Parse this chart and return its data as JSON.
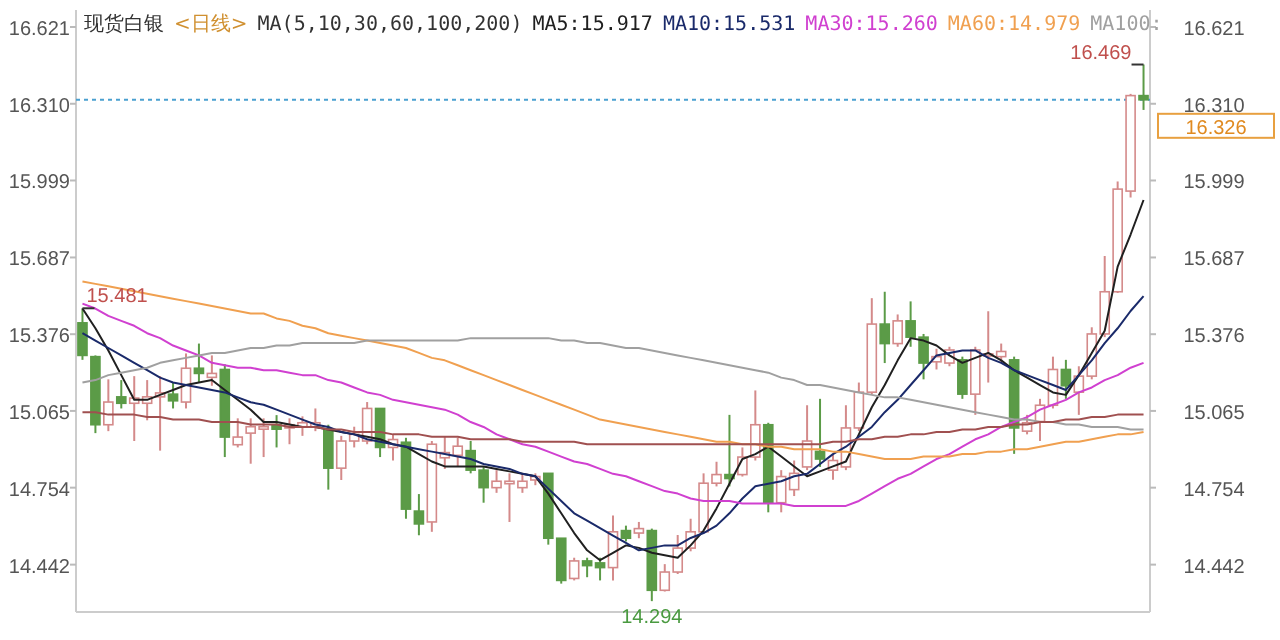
{
  "chart_data": {
    "type": "candlestick",
    "title": "现货白银",
    "subtitle": "<日线>",
    "annotations": [
      "MA(5,10,30,60,100,200)",
      {
        "text": "15.481",
        "y": 15.481
      },
      {
        "text": "14.294",
        "y": 14.294
      },
      "16.469"
    ],
    "categories": [
      null,
      null,
      null,
      null,
      null,
      null,
      null,
      null,
      null,
      null,
      null,
      null,
      null,
      null,
      null,
      null,
      null,
      null,
      null,
      null,
      null,
      null,
      null,
      null,
      null,
      null,
      null,
      null,
      null,
      null,
      null,
      null,
      null,
      null,
      null,
      null,
      null,
      null,
      null,
      null,
      null,
      null,
      null,
      null,
      null,
      null,
      null,
      null,
      null,
      null,
      null,
      null,
      null,
      null,
      null,
      null,
      null,
      null,
      null,
      null,
      null,
      null,
      null,
      null,
      null,
      null,
      null,
      null,
      null,
      null,
      null,
      null,
      null,
      null,
      null,
      null,
      null,
      null,
      null,
      null,
      null,
      null,
      null
    ],
    "ylim": [
      14.25,
      16.69
    ],
    "yticks": [
      14.442,
      14.754,
      15.065,
      15.376,
      15.687,
      15.999,
      {
        "value": 16.31,
        "label": "16.310"
      },
      16.621
    ],
    "y2lim": [
      14.25,
      16.69
    ],
    "y2ticks": [
      14.442,
      14.754,
      15.065,
      15.376,
      15.687,
      15.999,
      {
        "value": 16.31,
        "label": "16.310"
      },
      16.621
    ],
    "legend": "top",
    "ref_lines": [
      {
        "axis": "y2",
        "value": 16.326,
        "label": "16.326",
        "color": "#4aa0d0",
        "line_style": "dotted"
      }
    ],
    "series": [
      {
        "type": "candlestick",
        "colors": [
          "#5b9b47",
          "#5b9b47",
          "#d48a8a",
          "#5b9b47",
          "#d48a8a",
          "#d48a8a",
          "#d48a8a",
          "#5b9b47",
          "#d48a8a",
          "#5b9b47",
          "#d48a8a",
          "#5b9b47",
          "#d48a8a",
          "#d48a8a",
          "#d48a8a",
          "#5b9b47",
          "#d48a8a",
          "#d48a8a",
          "#d48a8a",
          "#5b9b47",
          "#d48a8a",
          "#d48a8a",
          "#d48a8a",
          "#5b9b47",
          "#d48a8a",
          "#5b9b47",
          "#5b9b47",
          "#d48a8a",
          "#d48a8a",
          "#d48a8a",
          "#5b9b47",
          "#5b9b47",
          "#d48a8a",
          "#d48a8a",
          "#d48a8a",
          "#d48a8a",
          "#5b9b47",
          "#5b9b47",
          "#d48a8a",
          "#5b9b47",
          "#5b9b47",
          "#d48a8a",
          "#5b9b47",
          "#d48a8a",
          "#5b9b47",
          "#d48a8a",
          "#d48a8a",
          "#d48a8a",
          "#d48a8a",
          "#d48a8a",
          "#5b9b47",
          "#d48a8a",
          "#d48a8a",
          "#5b9b47",
          "#d48a8a",
          "#d48a8a",
          "#d48a8a",
          "#5b9b47",
          "#d48a8a",
          "#d48a8a",
          "#d48a8a",
          "#d48a8a",
          "#5b9b47",
          "#d48a8a",
          "#5b9b47",
          "#5b9b47",
          "#d48a8a",
          "#d48a8a",
          "#5b9b47",
          "#d48a8a",
          "#d48a8a",
          "#d48a8a",
          "#5b9b47",
          "#d48a8a",
          "#d48a8a",
          "#d48a8a",
          "#5b9b47",
          "#d48a8a",
          "#d48a8a",
          "#d48a8a",
          "#d48a8a",
          "#d48a8a",
          "#5b9b47"
        ],
        "ohlc": [
          [
            15.422,
            15.481,
            15.272,
            15.29
          ],
          [
            15.285,
            15.29,
            14.975,
            15.009
          ],
          [
            15.009,
            15.193,
            14.983,
            15.101
          ],
          [
            15.122,
            15.19,
            15.075,
            15.096
          ],
          [
            15.096,
            15.206,
            14.943,
            15.117
          ],
          [
            15.096,
            15.19,
            15.027,
            15.122
          ],
          [
            15.122,
            15.206,
            14.904,
            15.138
          ],
          [
            15.133,
            15.18,
            15.075,
            15.106
          ],
          [
            15.101,
            15.298,
            15.075,
            15.238
          ],
          [
            15.238,
            15.338,
            15.18,
            15.217
          ],
          [
            15.201,
            15.29,
            15.167,
            15.217
          ],
          [
            15.233,
            15.254,
            14.878,
            14.959
          ],
          [
            14.928,
            15.035,
            14.917,
            14.959
          ],
          [
            14.975,
            15.035,
            14.851,
            15.001
          ],
          [
            14.991,
            15.035,
            14.878,
            15.001
          ],
          [
            15.009,
            15.048,
            14.917,
            14.991
          ],
          [
            14.996,
            15.035,
            14.93,
            15.009
          ],
          [
            15.001,
            15.043,
            14.964,
            15.017
          ],
          [
            15.001,
            15.075,
            14.983,
            15.017
          ],
          [
            14.991,
            15.009,
            14.746,
            14.833
          ],
          [
            14.833,
            14.964,
            14.785,
            14.943
          ],
          [
            14.943,
            15.001,
            14.917,
            14.97
          ],
          [
            14.943,
            15.101,
            14.93,
            15.075
          ],
          [
            15.075,
            15.075,
            14.878,
            14.917
          ],
          [
            14.917,
            14.97,
            14.864,
            14.949
          ],
          [
            14.938,
            14.956,
            14.628,
            14.667
          ],
          [
            14.659,
            14.728,
            14.561,
            14.607
          ],
          [
            14.615,
            14.943,
            14.575,
            14.93
          ],
          [
            14.875,
            14.962,
            14.83,
            14.896
          ],
          [
            14.885,
            14.956,
            14.838,
            14.922
          ],
          [
            14.904,
            14.943,
            14.812,
            14.825
          ],
          [
            14.825,
            14.838,
            14.693,
            14.754
          ],
          [
            14.754,
            14.825,
            14.733,
            14.78
          ],
          [
            14.77,
            14.812,
            14.615,
            14.78
          ],
          [
            14.754,
            14.812,
            14.733,
            14.78
          ],
          [
            14.785,
            14.812,
            14.764,
            14.799
          ],
          [
            14.812,
            14.812,
            14.523,
            14.549
          ],
          [
            14.549,
            14.549,
            14.365,
            14.378
          ],
          [
            14.386,
            14.47,
            14.378,
            14.457
          ],
          [
            14.457,
            14.47,
            14.391,
            14.438
          ],
          [
            14.449,
            14.47,
            14.378,
            14.43
          ],
          [
            14.43,
            14.641,
            14.378,
            14.575
          ],
          [
            14.58,
            14.6,
            14.536,
            14.549
          ],
          [
            14.57,
            14.615,
            14.549,
            14.588
          ],
          [
            14.58,
            14.588,
            14.294,
            14.338
          ],
          [
            14.338,
            14.444,
            14.333,
            14.412
          ],
          [
            14.412,
            14.562,
            14.404,
            14.509
          ],
          [
            14.509,
            14.628,
            14.496,
            14.575
          ],
          [
            14.575,
            14.812,
            14.57,
            14.772
          ],
          [
            14.772,
            14.859,
            14.759,
            14.807
          ],
          [
            14.807,
            15.049,
            14.759,
            14.791
          ],
          [
            14.807,
            14.917,
            14.799,
            14.878
          ],
          [
            14.878,
            15.148,
            14.864,
            15.009
          ],
          [
            15.009,
            15.017,
            14.654,
            14.693
          ],
          [
            14.693,
            14.825,
            14.654,
            14.799
          ],
          [
            14.746,
            14.864,
            14.72,
            14.812
          ],
          [
            14.838,
            15.088,
            14.825,
            14.943
          ],
          [
            14.901,
            15.114,
            14.838,
            14.87
          ],
          [
            14.825,
            14.891,
            14.786,
            14.864
          ],
          [
            14.838,
            15.088,
            14.825,
            14.996
          ],
          [
            14.996,
            15.18,
            14.983,
            15.141
          ],
          [
            15.141,
            15.522,
            15.133,
            15.417
          ],
          [
            15.417,
            15.548,
            15.259,
            15.338
          ],
          [
            15.338,
            15.456,
            15.325,
            15.43
          ],
          [
            15.43,
            15.509,
            15.325,
            15.364
          ],
          [
            15.364,
            15.377,
            15.193,
            15.259
          ],
          [
            15.264,
            15.317,
            15.233,
            15.285
          ],
          [
            15.259,
            15.325,
            15.246,
            15.312
          ],
          [
            15.272,
            15.285,
            15.114,
            15.133
          ],
          [
            15.133,
            15.325,
            15.049,
            15.312
          ],
          [
            15.291,
            15.469,
            15.18,
            15.296
          ],
          [
            15.285,
            15.338,
            15.259,
            15.306
          ],
          [
            15.272,
            15.285,
            14.891,
            14.996
          ],
          [
            14.983,
            15.049,
            14.97,
            15.017
          ],
          [
            15.022,
            15.114,
            14.943,
            15.088
          ],
          [
            15.088,
            15.285,
            15.075,
            15.233
          ],
          [
            15.233,
            15.272,
            15.114,
            15.167
          ],
          [
            15.141,
            15.246,
            15.049,
            15.206
          ],
          [
            15.206,
            15.404,
            15.193,
            15.377
          ],
          [
            15.377,
            15.693,
            15.364,
            15.548
          ],
          [
            15.548,
            15.995,
            15.543,
            15.964
          ],
          [
            15.956,
            16.35,
            15.93,
            16.343
          ],
          [
            16.343,
            16.469,
            16.285,
            16.326
          ]
        ]
      },
      {
        "type": "line",
        "name": "MA5:15.917",
        "color": "#202020",
        "values": [
          15.48,
          15.4,
          15.31,
          15.21,
          15.11,
          15.11,
          15.13,
          15.15,
          15.17,
          15.18,
          15.19,
          15.15,
          15.11,
          15.07,
          15.02,
          15.02,
          15.01,
          15.0,
          15.0,
          14.99,
          14.98,
          14.97,
          14.96,
          14.95,
          14.93,
          14.92,
          14.89,
          14.86,
          14.84,
          14.84,
          14.84,
          14.84,
          14.83,
          14.82,
          14.81,
          14.8,
          14.73,
          14.65,
          14.57,
          14.5,
          14.46,
          14.49,
          14.52,
          14.51,
          14.49,
          14.48,
          14.47,
          14.52,
          14.58,
          14.67,
          14.77,
          14.87,
          14.89,
          14.92,
          14.88,
          14.84,
          14.8,
          14.82,
          14.84,
          14.86,
          14.97,
          15.08,
          15.17,
          15.27,
          15.36,
          15.35,
          15.33,
          15.29,
          15.26,
          15.28,
          15.3,
          15.27,
          15.23,
          15.2,
          15.17,
          15.14,
          15.13,
          15.21,
          15.3,
          15.39,
          15.65,
          15.78,
          15.92
        ]
      },
      {
        "type": "line",
        "name": "MA10:15.531",
        "color": "#1a2a6a",
        "values": [
          15.38,
          15.35,
          15.32,
          15.29,
          15.26,
          15.23,
          15.2,
          15.18,
          15.17,
          15.16,
          15.15,
          15.14,
          15.12,
          15.1,
          15.09,
          15.07,
          15.05,
          15.03,
          15.01,
          15.0,
          14.98,
          14.97,
          14.95,
          14.94,
          14.93,
          14.92,
          14.91,
          14.9,
          14.89,
          14.88,
          14.87,
          14.85,
          14.84,
          14.83,
          14.81,
          14.8,
          14.75,
          14.7,
          14.65,
          14.62,
          14.59,
          14.56,
          14.53,
          14.5,
          14.51,
          14.52,
          14.52,
          14.55,
          14.57,
          14.6,
          14.65,
          14.71,
          14.76,
          14.77,
          14.78,
          14.8,
          14.81,
          14.85,
          14.89,
          14.92,
          14.96,
          15.0,
          15.06,
          15.11,
          15.17,
          15.23,
          15.29,
          15.3,
          15.31,
          15.31,
          15.28,
          15.26,
          15.23,
          15.21,
          15.19,
          15.17,
          15.15,
          15.21,
          15.27,
          15.34,
          15.4,
          15.47,
          15.53
        ]
      },
      {
        "type": "line",
        "name": "MA30:15.260",
        "color": "#d040d0",
        "values": [
          15.5,
          15.48,
          15.45,
          15.43,
          15.41,
          15.38,
          15.36,
          15.33,
          15.31,
          15.29,
          15.26,
          15.25,
          15.24,
          15.24,
          15.23,
          15.23,
          15.22,
          15.21,
          15.21,
          15.19,
          15.18,
          15.16,
          15.14,
          15.13,
          15.11,
          15.1,
          15.09,
          15.08,
          15.07,
          15.05,
          15.02,
          15.0,
          14.97,
          14.95,
          14.93,
          14.92,
          14.9,
          14.88,
          14.86,
          14.85,
          14.83,
          14.81,
          14.8,
          14.78,
          14.76,
          14.74,
          14.73,
          14.71,
          14.7,
          14.7,
          14.7,
          14.69,
          14.69,
          14.69,
          14.69,
          14.68,
          14.68,
          14.68,
          14.68,
          14.68,
          14.7,
          14.73,
          14.76,
          14.79,
          14.81,
          14.84,
          14.87,
          14.89,
          14.92,
          14.95,
          14.97,
          15.0,
          15.02,
          15.04,
          15.07,
          15.09,
          15.11,
          15.14,
          15.16,
          15.19,
          15.21,
          15.24,
          15.26
        ]
      },
      {
        "type": "line",
        "name": "MA60:14.979",
        "color": "#f0a050",
        "values": [
          15.59,
          15.58,
          15.57,
          15.56,
          15.55,
          15.54,
          15.53,
          15.52,
          15.51,
          15.5,
          15.49,
          15.48,
          15.47,
          15.46,
          15.46,
          15.44,
          15.43,
          15.41,
          15.4,
          15.38,
          15.37,
          15.36,
          15.35,
          15.34,
          15.33,
          15.32,
          15.3,
          15.28,
          15.27,
          15.25,
          15.23,
          15.21,
          15.19,
          15.17,
          15.15,
          15.13,
          15.11,
          15.09,
          15.07,
          15.05,
          15.03,
          15.02,
          15.01,
          15.0,
          14.99,
          14.98,
          14.97,
          14.96,
          14.95,
          14.94,
          14.94,
          14.93,
          14.93,
          14.92,
          14.92,
          14.91,
          14.91,
          14.91,
          14.9,
          14.9,
          14.89,
          14.88,
          14.87,
          14.87,
          14.87,
          14.88,
          14.88,
          14.88,
          14.89,
          14.89,
          14.9,
          14.9,
          14.91,
          14.91,
          14.92,
          14.93,
          14.94,
          14.94,
          14.95,
          14.96,
          14.97,
          14.97,
          14.98
        ]
      },
      {
        "type": "line",
        "name": "MA100:",
        "color": "#a0a0a0",
        "values": [
          15.18,
          15.19,
          15.21,
          15.22,
          15.23,
          15.24,
          15.26,
          15.27,
          15.28,
          15.29,
          15.3,
          15.3,
          15.31,
          15.32,
          15.32,
          15.33,
          15.33,
          15.34,
          15.34,
          15.34,
          15.34,
          15.34,
          15.35,
          15.35,
          15.35,
          15.35,
          15.35,
          15.35,
          15.35,
          15.35,
          15.36,
          15.36,
          15.36,
          15.36,
          15.36,
          15.36,
          15.36,
          15.35,
          15.35,
          15.34,
          15.34,
          15.33,
          15.32,
          15.32,
          15.31,
          15.3,
          15.29,
          15.28,
          15.27,
          15.26,
          15.25,
          15.24,
          15.23,
          15.22,
          15.2,
          15.19,
          15.17,
          15.17,
          15.16,
          15.15,
          15.14,
          15.13,
          15.12,
          15.12,
          15.11,
          15.1,
          15.09,
          15.08,
          15.07,
          15.06,
          15.05,
          15.04,
          15.03,
          15.03,
          15.02,
          15.02,
          15.01,
          15.01,
          15.0,
          15.0,
          15.0,
          14.99,
          14.99
        ]
      },
      {
        "type": "line",
        "color": "#a05050",
        "values": [
          15.06,
          15.06,
          15.05,
          15.05,
          15.05,
          15.04,
          15.04,
          15.03,
          15.03,
          15.03,
          15.02,
          15.02,
          15.02,
          15.01,
          15.01,
          15.01,
          15.0,
          15.0,
          15.0,
          14.99,
          14.99,
          14.98,
          14.98,
          14.98,
          14.97,
          14.97,
          14.97,
          14.96,
          14.96,
          14.96,
          14.95,
          14.95,
          14.95,
          14.95,
          14.94,
          14.94,
          14.94,
          14.94,
          14.94,
          14.93,
          14.93,
          14.93,
          14.93,
          14.93,
          14.93,
          14.93,
          14.93,
          14.93,
          14.93,
          14.93,
          14.93,
          14.93,
          14.93,
          14.93,
          14.93,
          14.93,
          14.93,
          14.93,
          14.94,
          14.94,
          14.95,
          14.95,
          14.96,
          14.96,
          14.97,
          14.97,
          14.98,
          14.98,
          14.99,
          14.99,
          15.0,
          15.0,
          15.01,
          15.01,
          15.02,
          15.02,
          15.03,
          15.03,
          15.04,
          15.04,
          15.05,
          15.05,
          15.05
        ]
      }
    ]
  }
}
